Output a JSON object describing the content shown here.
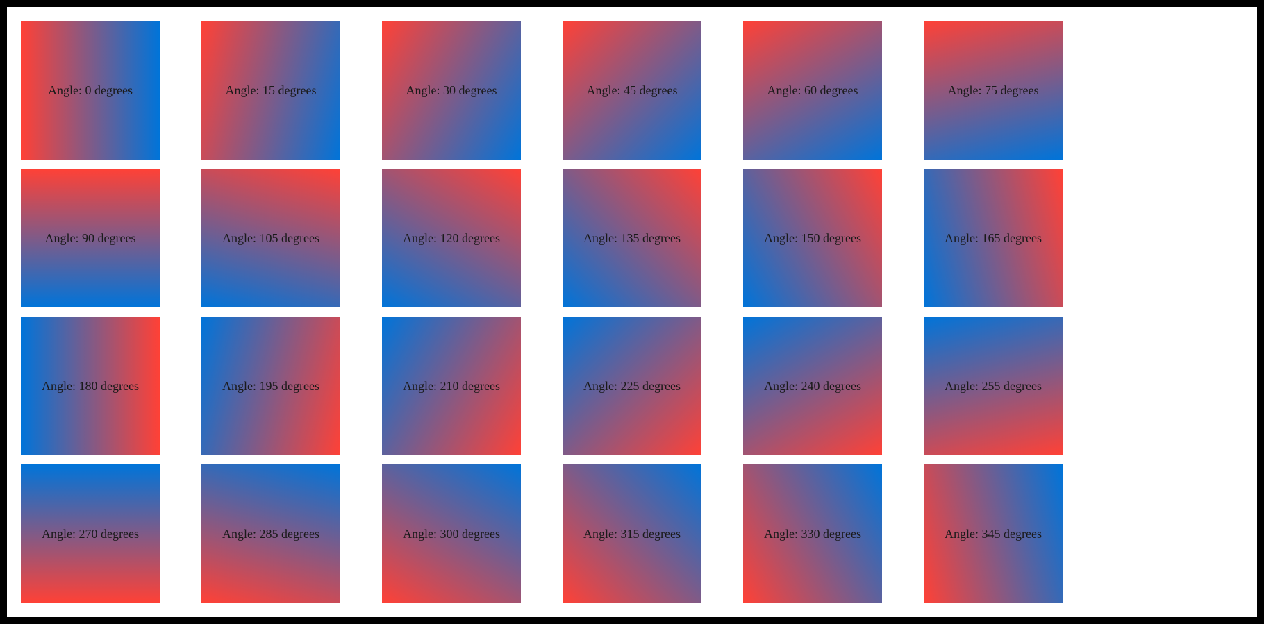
{
  "colors": {
    "start": "#ff4136",
    "end": "#0074d9"
  },
  "label_prefix": "Angle: ",
  "label_suffix": " degrees",
  "tiles": [
    {
      "angle": 0,
      "label": "Angle: 0 degrees"
    },
    {
      "angle": 15,
      "label": "Angle: 15 degrees"
    },
    {
      "angle": 30,
      "label": "Angle: 30 degrees"
    },
    {
      "angle": 45,
      "label": "Angle: 45 degrees"
    },
    {
      "angle": 60,
      "label": "Angle: 60 degrees"
    },
    {
      "angle": 75,
      "label": "Angle: 75 degrees"
    },
    {
      "angle": 90,
      "label": "Angle: 90 degrees"
    },
    {
      "angle": 105,
      "label": "Angle: 105 degrees"
    },
    {
      "angle": 120,
      "label": "Angle: 120 degrees"
    },
    {
      "angle": 135,
      "label": "Angle: 135 degrees"
    },
    {
      "angle": 150,
      "label": "Angle: 150 degrees"
    },
    {
      "angle": 165,
      "label": "Angle: 165 degrees"
    },
    {
      "angle": 180,
      "label": "Angle: 180 degrees"
    },
    {
      "angle": 195,
      "label": "Angle: 195 degrees"
    },
    {
      "angle": 210,
      "label": "Angle: 210 degrees"
    },
    {
      "angle": 225,
      "label": "Angle: 225 degrees"
    },
    {
      "angle": 240,
      "label": "Angle: 240 degrees"
    },
    {
      "angle": 255,
      "label": "Angle: 255 degrees"
    },
    {
      "angle": 270,
      "label": "Angle: 270 degrees"
    },
    {
      "angle": 285,
      "label": "Angle: 285 degrees"
    },
    {
      "angle": 300,
      "label": "Angle: 300 degrees"
    },
    {
      "angle": 315,
      "label": "Angle: 315 degrees"
    },
    {
      "angle": 330,
      "label": "Angle: 330 degrees"
    },
    {
      "angle": 345,
      "label": "Angle: 345 degrees"
    }
  ]
}
